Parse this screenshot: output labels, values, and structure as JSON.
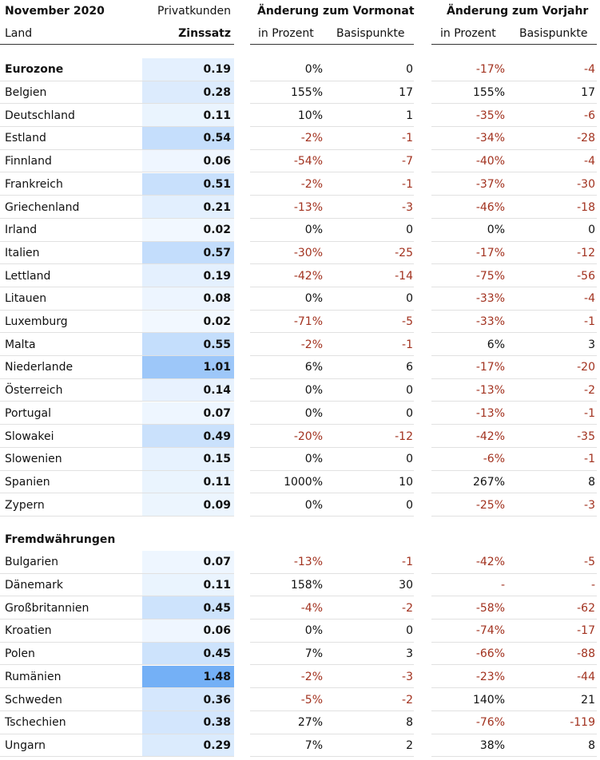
{
  "header": {
    "title": "November 2020",
    "land": "Land",
    "privatkunden": "Privatkunden",
    "zinssatz": "Zinssatz",
    "vormonat": "Änderung zum Vormonat",
    "vorjahr": "Änderung zum Vorjahr",
    "in_prozent": "in Prozent",
    "basispunkte": "Basispunkte"
  },
  "colors": {
    "negative": "#a2321f",
    "heat_low": "#f4f9ff",
    "heat_high": "#74b0f6"
  },
  "sections": [
    {
      "title": "Eurozone",
      "rows": [
        {
          "land": "Eurozone",
          "rate": "0.19",
          "mp": "0%",
          "mb": "0",
          "yp": "-17%",
          "yb": "-4",
          "header": true
        },
        {
          "land": "Belgien",
          "rate": "0.28",
          "mp": "155%",
          "mb": "17",
          "yp": "155%",
          "yb": "17"
        },
        {
          "land": "Deutschland",
          "rate": "0.11",
          "mp": "10%",
          "mb": "1",
          "yp": "-35%",
          "yb": "-6"
        },
        {
          "land": "Estland",
          "rate": "0.54",
          "mp": "-2%",
          "mb": "-1",
          "yp": "-34%",
          "yb": "-28"
        },
        {
          "land": "Finnland",
          "rate": "0.06",
          "mp": "-54%",
          "mb": "-7",
          "yp": "-40%",
          "yb": "-4"
        },
        {
          "land": "Frankreich",
          "rate": "0.51",
          "mp": "-2%",
          "mb": "-1",
          "yp": "-37%",
          "yb": "-30"
        },
        {
          "land": "Griechenland",
          "rate": "0.21",
          "mp": "-13%",
          "mb": "-3",
          "yp": "-46%",
          "yb": "-18"
        },
        {
          "land": "Irland",
          "rate": "0.02",
          "mp": "0%",
          "mb": "0",
          "yp": "0%",
          "yb": "0"
        },
        {
          "land": "Italien",
          "rate": "0.57",
          "mp": "-30%",
          "mb": "-25",
          "yp": "-17%",
          "yb": "-12"
        },
        {
          "land": "Lettland",
          "rate": "0.19",
          "mp": "-42%",
          "mb": "-14",
          "yp": "-75%",
          "yb": "-56"
        },
        {
          "land": "Litauen",
          "rate": "0.08",
          "mp": "0%",
          "mb": "0",
          "yp": "-33%",
          "yb": "-4"
        },
        {
          "land": "Luxemburg",
          "rate": "0.02",
          "mp": "-71%",
          "mb": "-5",
          "yp": "-33%",
          "yb": "-1"
        },
        {
          "land": "Malta",
          "rate": "0.55",
          "mp": "-2%",
          "mb": "-1",
          "yp": "6%",
          "yb": "3"
        },
        {
          "land": "Niederlande",
          "rate": "1.01",
          "mp": "6%",
          "mb": "6",
          "yp": "-17%",
          "yb": "-20"
        },
        {
          "land": "Österreich",
          "rate": "0.14",
          "mp": "0%",
          "mb": "0",
          "yp": "-13%",
          "yb": "-2"
        },
        {
          "land": "Portugal",
          "rate": "0.07",
          "mp": "0%",
          "mb": "0",
          "yp": "-13%",
          "yb": "-1"
        },
        {
          "land": "Slowakei",
          "rate": "0.49",
          "mp": "-20%",
          "mb": "-12",
          "yp": "-42%",
          "yb": "-35"
        },
        {
          "land": "Slowenien",
          "rate": "0.15",
          "mp": "0%",
          "mb": "0",
          "yp": "-6%",
          "yb": "-1"
        },
        {
          "land": "Spanien",
          "rate": "0.11",
          "mp": "1000%",
          "mb": "10",
          "yp": "267%",
          "yb": "8"
        },
        {
          "land": "Zypern",
          "rate": "0.09",
          "mp": "0%",
          "mb": "0",
          "yp": "-25%",
          "yb": "-3"
        }
      ]
    },
    {
      "title": "Fremdwährungen",
      "rows": [
        {
          "land": "Bulgarien",
          "rate": "0.07",
          "mp": "-13%",
          "mb": "-1",
          "yp": "-42%",
          "yb": "-5"
        },
        {
          "land": "Dänemark",
          "rate": "0.11",
          "mp": "158%",
          "mb": "30",
          "yp": "-",
          "yb": "-"
        },
        {
          "land": "Großbritannien",
          "rate": "0.45",
          "mp": "-4%",
          "mb": "-2",
          "yp": "-58%",
          "yb": "-62"
        },
        {
          "land": "Kroatien",
          "rate": "0.06",
          "mp": "0%",
          "mb": "0",
          "yp": "-74%",
          "yb": "-17"
        },
        {
          "land": "Polen",
          "rate": "0.45",
          "mp": "7%",
          "mb": "3",
          "yp": "-66%",
          "yb": "-88"
        },
        {
          "land": "Rumänien",
          "rate": "1.48",
          "mp": "-2%",
          "mb": "-3",
          "yp": "-23%",
          "yb": "-44"
        },
        {
          "land": "Schweden",
          "rate": "0.36",
          "mp": "-5%",
          "mb": "-2",
          "yp": "140%",
          "yb": "21"
        },
        {
          "land": "Tschechien",
          "rate": "0.38",
          "mp": "27%",
          "mb": "8",
          "yp": "-76%",
          "yb": "-119"
        },
        {
          "land": "Ungarn",
          "rate": "0.29",
          "mp": "7%",
          "mb": "2",
          "yp": "38%",
          "yb": "8"
        }
      ]
    }
  ]
}
